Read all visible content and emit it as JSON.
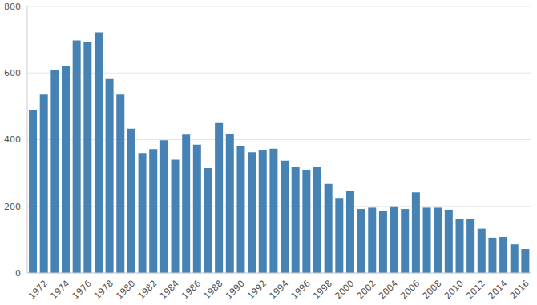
{
  "chart_data": {
    "type": "bar",
    "categories": [
      null,
      "1972",
      null,
      "1974",
      null,
      "1976",
      null,
      "1978",
      null,
      "1980",
      null,
      "1982",
      null,
      "1984",
      null,
      "1986",
      null,
      "1988",
      null,
      "1990",
      null,
      "1992",
      null,
      "1994",
      null,
      "1996",
      null,
      "1998",
      null,
      "2000",
      null,
      "2002",
      null,
      "2004",
      null,
      "2006",
      null,
      "2008",
      null,
      "2010",
      null,
      "2012",
      null,
      "2014",
      null,
      "2016"
    ],
    "values": [
      490,
      535,
      610,
      620,
      698,
      692,
      722,
      582,
      535,
      433,
      360,
      372,
      398,
      340,
      415,
      385,
      315,
      450,
      418,
      382,
      362,
      370,
      373,
      337,
      318,
      310,
      318,
      267,
      225,
      247,
      192,
      196,
      185,
      200,
      192,
      242,
      196,
      196,
      190,
      163,
      162,
      133,
      106,
      108,
      86,
      72
    ],
    "color": "#4682b4",
    "ylim": [
      0,
      800
    ],
    "yticks": [
      0,
      200,
      400,
      600,
      800
    ],
    "grid": true
  }
}
